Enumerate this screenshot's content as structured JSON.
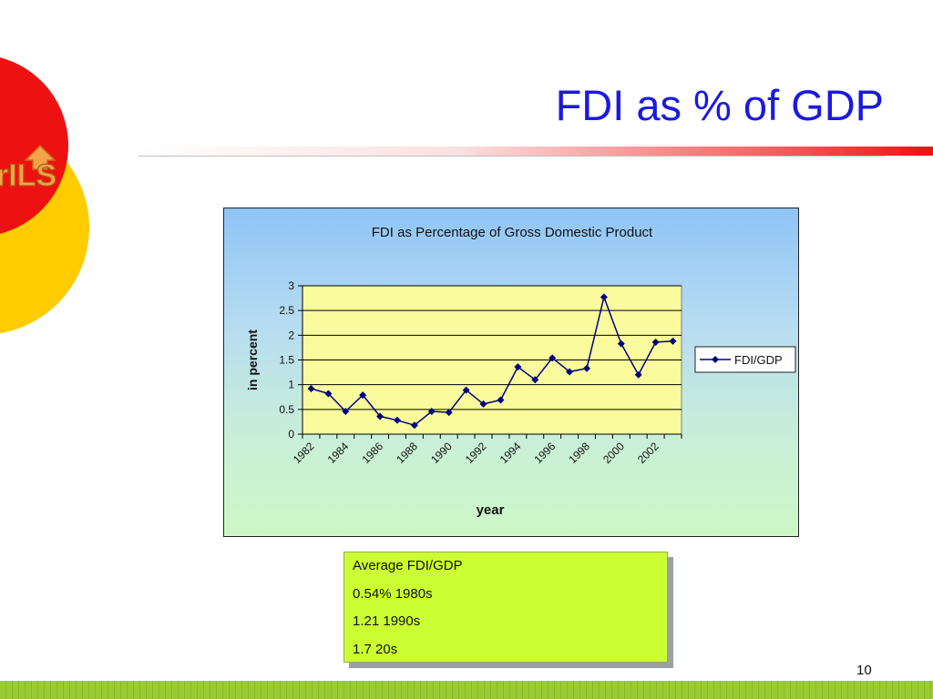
{
  "slide": {
    "title": "FDI as % of GDP",
    "logo_text": "rILS",
    "page_number": "10"
  },
  "colors": {
    "title_blue": "#1a1ae0",
    "deco_red": "#ee1111",
    "deco_yellow": "#ffcc00",
    "series_navy": "#000080",
    "box_green": "#ccff33",
    "footer_green": "#99cc33"
  },
  "info_box": {
    "lines": [
      "Average FDI/GDP",
      "0.54% 1980s",
      "1.21 1990s",
      "1.7 20s"
    ]
  },
  "chart_data": {
    "type": "line",
    "title": "FDI as Percentage of Gross Domestic Product",
    "xlabel": "year",
    "ylabel": "in percent",
    "categories": [
      "1982",
      "1983",
      "1984",
      "1985",
      "1986",
      "1987",
      "1988",
      "1989",
      "1990",
      "1991",
      "1992",
      "1993",
      "1994",
      "1995",
      "1996",
      "1997",
      "1998",
      "1999",
      "2000",
      "2001",
      "2002",
      "2003"
    ],
    "x_tick_labels": [
      "1982",
      "1984",
      "1986",
      "1988",
      "1990",
      "1992",
      "1994",
      "1996",
      "1998",
      "2000",
      "2002"
    ],
    "series": [
      {
        "name": "FDI/GDP",
        "values": [
          0.92,
          0.82,
          0.46,
          0.79,
          0.36,
          0.28,
          0.18,
          0.46,
          0.44,
          0.89,
          0.61,
          0.69,
          1.36,
          1.1,
          1.54,
          1.26,
          1.33,
          2.77,
          1.83,
          1.2,
          1.86,
          1.88
        ]
      }
    ],
    "ylim": [
      0,
      3
    ],
    "yticks": [
      0,
      0.5,
      1,
      1.5,
      2,
      2.5,
      3
    ],
    "ytick_labels": [
      "0",
      "0.5",
      "1",
      "1.5",
      "2",
      "2.5",
      "3"
    ],
    "grid": true,
    "legend_position": "right",
    "marker": "diamond"
  }
}
